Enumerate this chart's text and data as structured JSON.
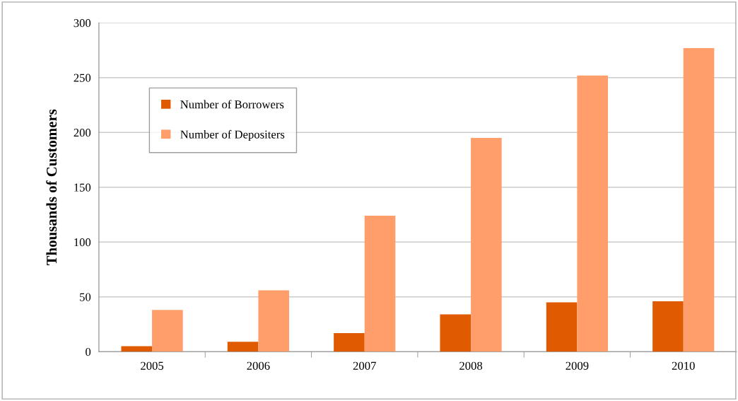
{
  "chart_data": {
    "type": "bar",
    "ylabel": "Thousands of Customers",
    "categories": [
      "2005",
      "2006",
      "2007",
      "2008",
      "2009",
      "2010"
    ],
    "series": [
      {
        "name": "Number of Borrowers",
        "color": "#e05a00",
        "values": [
          5,
          9,
          17,
          34,
          45,
          46
        ]
      },
      {
        "name": "Number of Depositers",
        "color": "#ff9e6a",
        "values": [
          38,
          56,
          124,
          195,
          252,
          277
        ]
      }
    ],
    "ylim": [
      0,
      300
    ],
    "yticks": [
      0,
      50,
      100,
      150,
      200,
      250,
      300
    ],
    "grid": "y",
    "legend": "top left"
  }
}
